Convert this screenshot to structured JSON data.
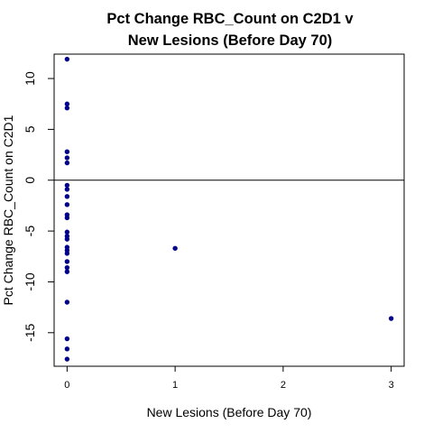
{
  "chart_data": {
    "type": "scatter",
    "title_lines": [
      "Pct Change RBC_Count on C2D1 v",
      "New Lesions (Before Day 70)"
    ],
    "xlabel": "New Lesions (Before Day 70)",
    "ylabel": "Pct Change RBC_Count on C2D1",
    "xlim": [
      -0.12,
      3.12
    ],
    "ylim": [
      -18.3,
      12.4
    ],
    "x_ticks": [
      0,
      1,
      2,
      3
    ],
    "y_ticks": [
      -15,
      -10,
      -5,
      0,
      5,
      10
    ],
    "reference_line": {
      "y": 0
    },
    "point_color": "#00008B",
    "points": [
      {
        "x": 0,
        "y": 11.9
      },
      {
        "x": 0,
        "y": 7.5
      },
      {
        "x": 0,
        "y": 7.1
      },
      {
        "x": 0,
        "y": 2.8
      },
      {
        "x": 0,
        "y": 2.2
      },
      {
        "x": 0,
        "y": 1.7
      },
      {
        "x": 0,
        "y": -0.5
      },
      {
        "x": 0,
        "y": -0.9
      },
      {
        "x": 0,
        "y": -1.6
      },
      {
        "x": 0,
        "y": -2.4
      },
      {
        "x": 0,
        "y": -3.4
      },
      {
        "x": 0,
        "y": -3.7
      },
      {
        "x": 0,
        "y": -5.1
      },
      {
        "x": 0,
        "y": -5.5
      },
      {
        "x": 0,
        "y": -5.8
      },
      {
        "x": 0,
        "y": -6.6
      },
      {
        "x": 0,
        "y": -6.9
      },
      {
        "x": 0,
        "y": -7.2
      },
      {
        "x": 0,
        "y": -8.0
      },
      {
        "x": 0,
        "y": -8.6
      },
      {
        "x": 0,
        "y": -9.0
      },
      {
        "x": 0,
        "y": -12.0
      },
      {
        "x": 0,
        "y": -15.6
      },
      {
        "x": 0,
        "y": -16.6
      },
      {
        "x": 0,
        "y": -17.6
      },
      {
        "x": 1,
        "y": -6.7
      },
      {
        "x": 3,
        "y": -13.6
      }
    ]
  }
}
